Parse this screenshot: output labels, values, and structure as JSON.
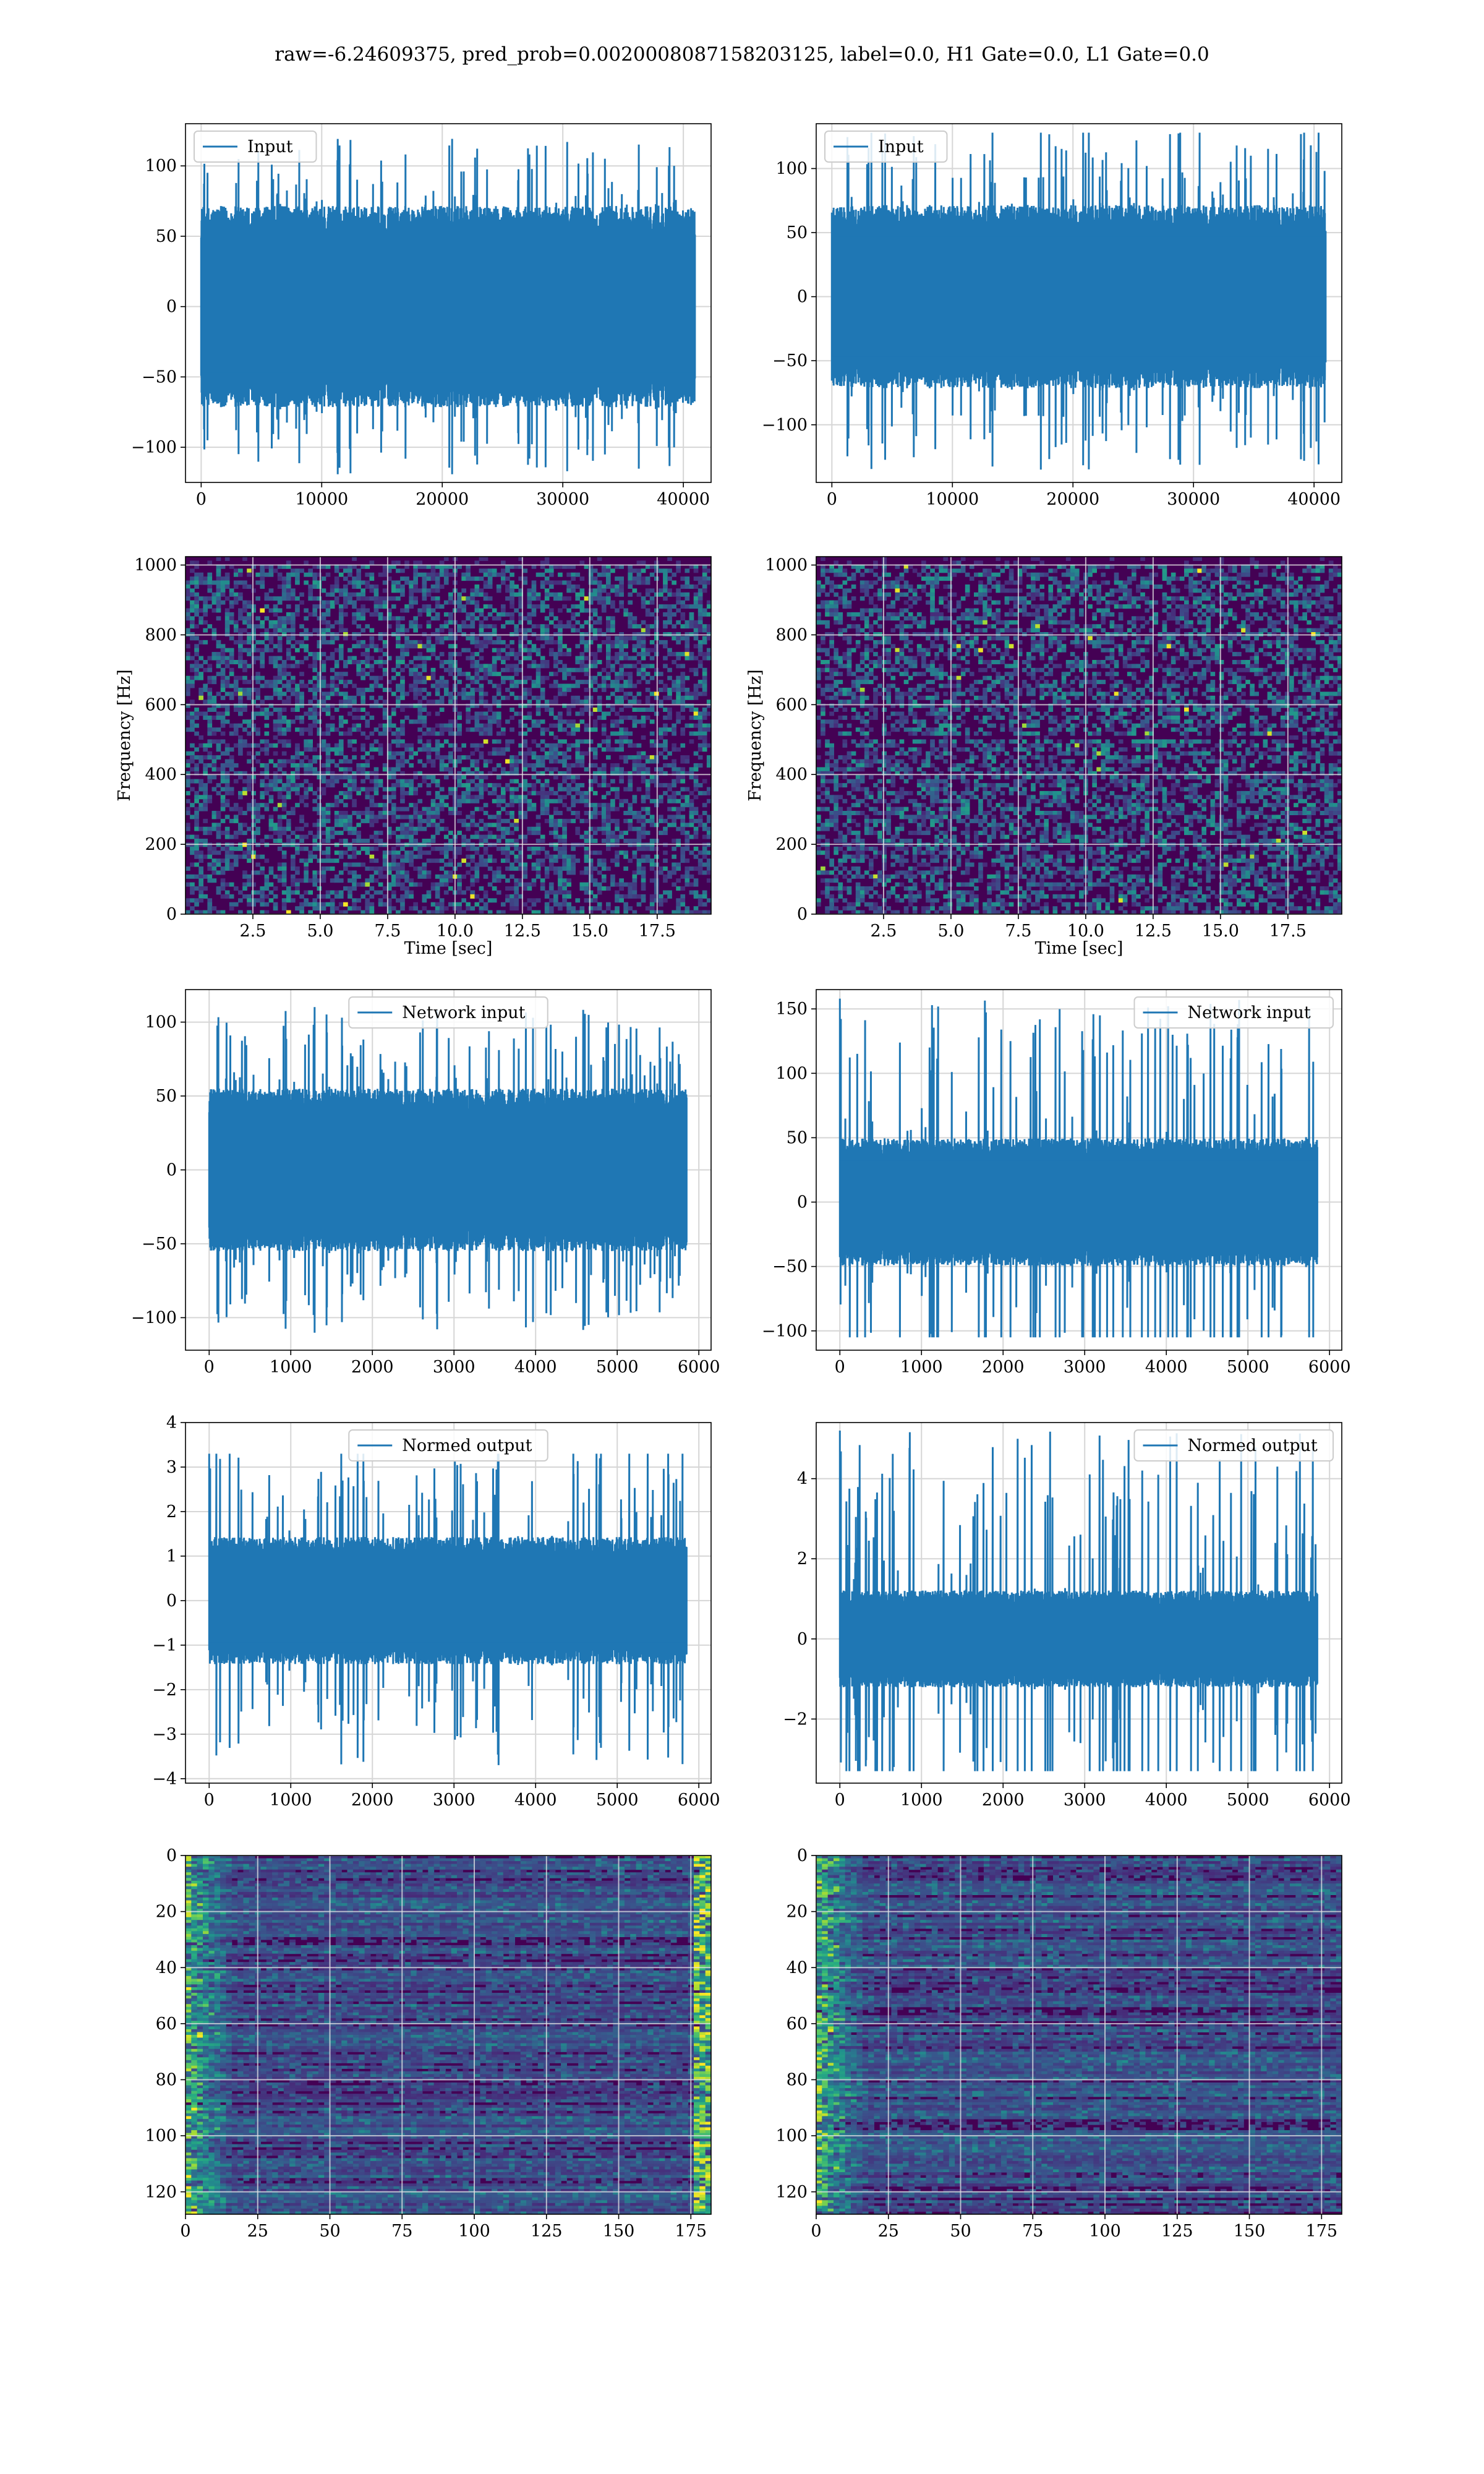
{
  "figure": {
    "title": "raw=-6.24609375, pred_prob=0.0020008087158203125, label=0.0, H1 Gate=0.0, L1 Gate=0.0"
  },
  "colors": {
    "series": "#1f77b4",
    "grid": "#d6d6d6",
    "heat_low": "#440154",
    "heat_mid": "#21918c",
    "heat_high": "#fde725"
  },
  "chart_data": [
    {
      "id": "h1-input",
      "type": "line",
      "column": "left",
      "row": 0,
      "series": [
        {
          "name": "Input",
          "n_samples": 40960,
          "amplitude_typical": 65,
          "amplitude_max": 120,
          "amplitude_min": -120
        }
      ],
      "xlim": [
        -1300,
        42300
      ],
      "ylim": [
        -125,
        130
      ],
      "xticks": [
        0,
        10000,
        20000,
        30000,
        40000
      ],
      "xtick_labels": [
        "0",
        "10000",
        "20000",
        "30000",
        "40000"
      ],
      "yticks": [
        -100,
        -50,
        0,
        50,
        100
      ],
      "ytick_labels": [
        "−100",
        "−50",
        "0",
        "50",
        "100"
      ],
      "legend": "top-left",
      "grid": true,
      "xlabel": "",
      "ylabel": ""
    },
    {
      "id": "l1-input",
      "type": "line",
      "column": "right",
      "row": 0,
      "series": [
        {
          "name": "Input",
          "n_samples": 40960,
          "amplitude_typical": 65,
          "amplitude_max": 128,
          "amplitude_min": -135
        }
      ],
      "xlim": [
        -1300,
        42300
      ],
      "ylim": [
        -145,
        135
      ],
      "xticks": [
        0,
        10000,
        20000,
        30000,
        40000
      ],
      "xtick_labels": [
        "0",
        "10000",
        "20000",
        "30000",
        "40000"
      ],
      "yticks": [
        -100,
        -50,
        0,
        50,
        100
      ],
      "ytick_labels": [
        "−100",
        "−50",
        "0",
        "50",
        "100"
      ],
      "legend": "top-left",
      "grid": true,
      "xlabel": "",
      "ylabel": ""
    },
    {
      "id": "h1-spectrogram",
      "type": "heatmap",
      "column": "left",
      "row": 1,
      "xlim": [
        0,
        19.5
      ],
      "ylim": [
        0,
        1024
      ],
      "xticks": [
        2.5,
        5.0,
        7.5,
        10.0,
        12.5,
        15.0,
        17.5
      ],
      "xtick_labels": [
        "2.5",
        "5.0",
        "7.5",
        "10.0",
        "12.5",
        "15.0",
        "17.5"
      ],
      "yticks": [
        0,
        200,
        400,
        600,
        800,
        1000
      ],
      "ytick_labels": [
        "0",
        "200",
        "400",
        "600",
        "800",
        "1000"
      ],
      "xlabel": "Time [sec]",
      "ylabel": "Frequency [Hz]",
      "grid": true
    },
    {
      "id": "l1-spectrogram",
      "type": "heatmap",
      "column": "right",
      "row": 1,
      "xlim": [
        0,
        19.5
      ],
      "ylim": [
        0,
        1024
      ],
      "xticks": [
        2.5,
        5.0,
        7.5,
        10.0,
        12.5,
        15.0,
        17.5
      ],
      "xtick_labels": [
        "2.5",
        "5.0",
        "7.5",
        "10.0",
        "12.5",
        "15.0",
        "17.5"
      ],
      "yticks": [
        0,
        200,
        400,
        600,
        800,
        1000
      ],
      "ytick_labels": [
        "0",
        "200",
        "400",
        "600",
        "800",
        "1000"
      ],
      "xlabel": "Time [sec]",
      "ylabel": "Frequency [Hz]",
      "grid": true
    },
    {
      "id": "h1-network-input",
      "type": "line",
      "column": "left",
      "row": 2,
      "series": [
        {
          "name": "Network input",
          "n_samples": 5850,
          "amplitude_typical": 50,
          "amplitude_max": 112,
          "amplitude_min": -112
        }
      ],
      "xlim": [
        -290,
        6150
      ],
      "ylim": [
        -122,
        122
      ],
      "xticks": [
        0,
        1000,
        2000,
        3000,
        4000,
        5000,
        6000
      ],
      "xtick_labels": [
        "0",
        "1000",
        "2000",
        "3000",
        "4000",
        "5000",
        "6000"
      ],
      "yticks": [
        -100,
        -50,
        0,
        50,
        100
      ],
      "ytick_labels": [
        "−100",
        "−50",
        "0",
        "50",
        "100"
      ],
      "legend": "top-center",
      "grid": true,
      "xlabel": "",
      "ylabel": ""
    },
    {
      "id": "l1-network-input",
      "type": "line",
      "column": "right",
      "row": 2,
      "series": [
        {
          "name": "Network input",
          "n_samples": 5850,
          "amplitude_typical": 45,
          "amplitude_max": 158,
          "amplitude_min": -105
        }
      ],
      "xlim": [
        -290,
        6150
      ],
      "ylim": [
        -115,
        165
      ],
      "xticks": [
        0,
        1000,
        2000,
        3000,
        4000,
        5000,
        6000
      ],
      "xtick_labels": [
        "0",
        "1000",
        "2000",
        "3000",
        "4000",
        "5000",
        "6000"
      ],
      "yticks": [
        -100,
        -50,
        0,
        50,
        100,
        150
      ],
      "ytick_labels": [
        "−100",
        "−50",
        "0",
        "50",
        "100",
        "150"
      ],
      "legend": "top-right",
      "grid": true,
      "xlabel": "",
      "ylabel": ""
    },
    {
      "id": "h1-normed-output",
      "type": "line",
      "column": "left",
      "row": 3,
      "series": [
        {
          "name": "Normed output",
          "n_samples": 5850,
          "amplitude_typical": 1.3,
          "amplitude_max": 3.3,
          "amplitude_min": -3.7
        }
      ],
      "xlim": [
        -290,
        6150
      ],
      "ylim": [
        -4.1,
        4.0
      ],
      "xticks": [
        0,
        1000,
        2000,
        3000,
        4000,
        5000,
        6000
      ],
      "xtick_labels": [
        "0",
        "1000",
        "2000",
        "3000",
        "4000",
        "5000",
        "6000"
      ],
      "yticks": [
        -4,
        -3,
        -2,
        -1,
        0,
        1,
        2,
        3,
        4
      ],
      "ytick_labels": [
        "−4",
        "−3",
        "−2",
        "−1",
        "0",
        "1",
        "2",
        "3",
        "4"
      ],
      "legend": "top-center",
      "grid": true,
      "xlabel": "",
      "ylabel": ""
    },
    {
      "id": "l1-normed-output",
      "type": "line",
      "column": "right",
      "row": 3,
      "series": [
        {
          "name": "Normed output",
          "n_samples": 5850,
          "amplitude_typical": 1.1,
          "amplitude_max": 5.2,
          "amplitude_min": -3.3
        }
      ],
      "xlim": [
        -290,
        6150
      ],
      "ylim": [
        -3.6,
        5.4
      ],
      "xticks": [
        0,
        1000,
        2000,
        3000,
        4000,
        5000,
        6000
      ],
      "xtick_labels": [
        "0",
        "1000",
        "2000",
        "3000",
        "4000",
        "5000",
        "6000"
      ],
      "yticks": [
        -2,
        0,
        2,
        4
      ],
      "ytick_labels": [
        "−2",
        "0",
        "2",
        "4"
      ],
      "legend": "top-right",
      "grid": true,
      "xlabel": "",
      "ylabel": ""
    },
    {
      "id": "h1-feature-map",
      "type": "heatmap",
      "column": "left",
      "row": 4,
      "xlim": [
        0,
        182
      ],
      "ylim": [
        128,
        0
      ],
      "xticks": [
        0,
        25,
        50,
        75,
        100,
        125,
        150,
        175
      ],
      "xtick_labels": [
        "0",
        "25",
        "50",
        "75",
        "100",
        "125",
        "150",
        "175"
      ],
      "yticks": [
        0,
        20,
        40,
        60,
        80,
        100,
        120
      ],
      "ytick_labels": [
        "0",
        "20",
        "40",
        "60",
        "80",
        "100",
        "120"
      ],
      "grid": true,
      "xlabel": "",
      "ylabel": ""
    },
    {
      "id": "l1-feature-map",
      "type": "heatmap",
      "column": "right",
      "row": 4,
      "xlim": [
        0,
        182
      ],
      "ylim": [
        128,
        0
      ],
      "xticks": [
        0,
        25,
        50,
        75,
        100,
        125,
        150,
        175
      ],
      "xtick_labels": [
        "0",
        "25",
        "50",
        "75",
        "100",
        "125",
        "150",
        "175"
      ],
      "yticks": [
        0,
        20,
        40,
        60,
        80,
        100,
        120
      ],
      "ytick_labels": [
        "0",
        "20",
        "40",
        "60",
        "80",
        "100",
        "120"
      ],
      "grid": true,
      "xlabel": "",
      "ylabel": ""
    }
  ]
}
